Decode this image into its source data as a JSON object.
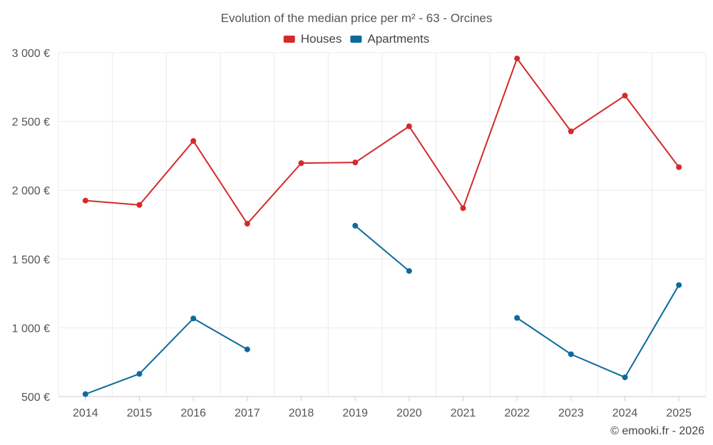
{
  "chart_data": {
    "type": "line",
    "title": "Evolution of the median price per m² - 63 - Orcines",
    "categories": [
      "2014",
      "2015",
      "2016",
      "2017",
      "2018",
      "2019",
      "2020",
      "2021",
      "2022",
      "2023",
      "2024",
      "2025"
    ],
    "ylim": [
      500,
      3000
    ],
    "yticks": [
      500,
      1000,
      1500,
      2000,
      2500,
      3000
    ],
    "ytick_labels": [
      "500 €",
      "1 000 €",
      "1 500 €",
      "2 000 €",
      "2 500 €",
      "3 000 €"
    ],
    "grid": true,
    "legend_position": "top-center",
    "series": [
      {
        "name": "Houses",
        "color": "#d42a2a",
        "values": [
          1925,
          1893,
          2358,
          1757,
          2197,
          2202,
          2465,
          1870,
          2958,
          2428,
          2688,
          2168
        ]
      },
      {
        "name": "Apartments",
        "color": "#0d6a9c",
        "values": [
          518,
          665,
          1068,
          843,
          null,
          1742,
          1413,
          null,
          1072,
          808,
          640,
          1311
        ]
      }
    ]
  },
  "credit": "© emooki.fr - 2026"
}
